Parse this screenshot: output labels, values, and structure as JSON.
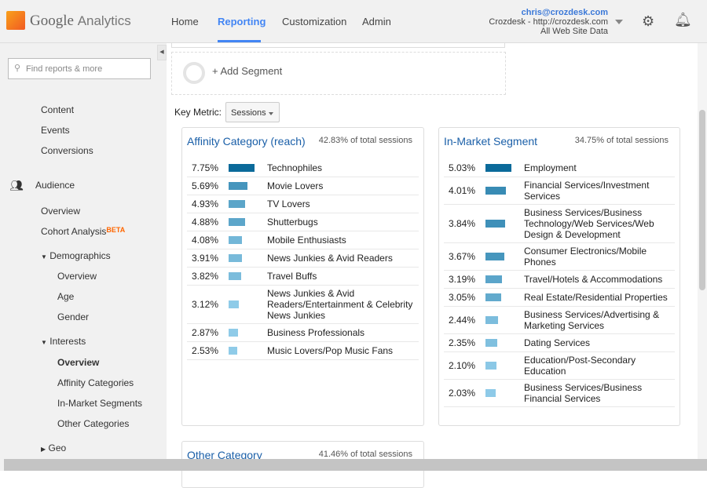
{
  "header": {
    "logo_text": "Google",
    "logo_sub": "Analytics",
    "nav": [
      "Home",
      "Reporting",
      "Customization",
      "Admin"
    ],
    "active_nav": "Reporting",
    "account": {
      "email": "chris@crozdesk.com",
      "property": "Crozdesk - http://crozdesk.com",
      "view": "All Web Site Data"
    }
  },
  "sidebar": {
    "search_placeholder": "Find reports & more",
    "items": {
      "content": "Content",
      "events": "Events",
      "conversions": "Conversions",
      "audience": "Audience",
      "overview": "Overview",
      "cohort": "Cohort Analysis",
      "beta": "BETA",
      "demographics": "Demographics",
      "demo_overview": "Overview",
      "age": "Age",
      "gender": "Gender",
      "interests": "Interests",
      "int_overview": "Overview",
      "affinity": "Affinity Categories",
      "inmarket": "In-Market Segments",
      "other": "Other Categories",
      "geo": "Geo"
    }
  },
  "segment": {
    "add_label": "+ Add Segment"
  },
  "key_metric": {
    "label": "Key Metric:",
    "value": "Sessions"
  },
  "panels": {
    "affinity": {
      "title": "Affinity Category (reach)",
      "subtitle": "42.83% of total sessions",
      "rows": [
        {
          "pct": "7.75%",
          "value": 7.75,
          "label": "Technophiles"
        },
        {
          "pct": "5.69%",
          "value": 5.69,
          "label": "Movie Lovers"
        },
        {
          "pct": "4.93%",
          "value": 4.93,
          "label": "TV Lovers"
        },
        {
          "pct": "4.88%",
          "value": 4.88,
          "label": "Shutterbugs"
        },
        {
          "pct": "4.08%",
          "value": 4.08,
          "label": "Mobile Enthusiasts"
        },
        {
          "pct": "3.91%",
          "value": 3.91,
          "label": "News Junkies & Avid Readers"
        },
        {
          "pct": "3.82%",
          "value": 3.82,
          "label": "Travel Buffs"
        },
        {
          "pct": "3.12%",
          "value": 3.12,
          "label": "News Junkies & Avid Readers/Entertainment & Celebrity News Junkies"
        },
        {
          "pct": "2.87%",
          "value": 2.87,
          "label": "Business Professionals"
        },
        {
          "pct": "2.53%",
          "value": 2.53,
          "label": "Music Lovers/Pop Music Fans"
        }
      ]
    },
    "inmarket": {
      "title": "In-Market Segment",
      "subtitle": "34.75% of total sessions",
      "rows": [
        {
          "pct": "5.03%",
          "value": 5.03,
          "label": "Employment"
        },
        {
          "pct": "4.01%",
          "value": 4.01,
          "label": "Financial Services/Investment Services"
        },
        {
          "pct": "3.84%",
          "value": 3.84,
          "label": "Business Services/Business Technology/Web Services/Web Design & Development"
        },
        {
          "pct": "3.67%",
          "value": 3.67,
          "label": "Consumer Electronics/Mobile Phones"
        },
        {
          "pct": "3.19%",
          "value": 3.19,
          "label": "Travel/Hotels & Accommodations"
        },
        {
          "pct": "3.05%",
          "value": 3.05,
          "label": "Real Estate/Residential Properties"
        },
        {
          "pct": "2.44%",
          "value": 2.44,
          "label": "Business Services/Advertising & Marketing Services"
        },
        {
          "pct": "2.35%",
          "value": 2.35,
          "label": "Dating Services"
        },
        {
          "pct": "2.10%",
          "value": 2.1,
          "label": "Education/Post-Secondary Education"
        },
        {
          "pct": "2.03%",
          "value": 2.03,
          "label": "Business Services/Business Financial Services"
        }
      ]
    },
    "other": {
      "title": "Other Category",
      "subtitle": "41.46% of total sessions"
    }
  },
  "colors": {
    "accent": "#4285f4",
    "title_blue": "#1a5fa8",
    "bar_dark": "#0b6a9a",
    "bar_light": "#8fcbe8"
  }
}
